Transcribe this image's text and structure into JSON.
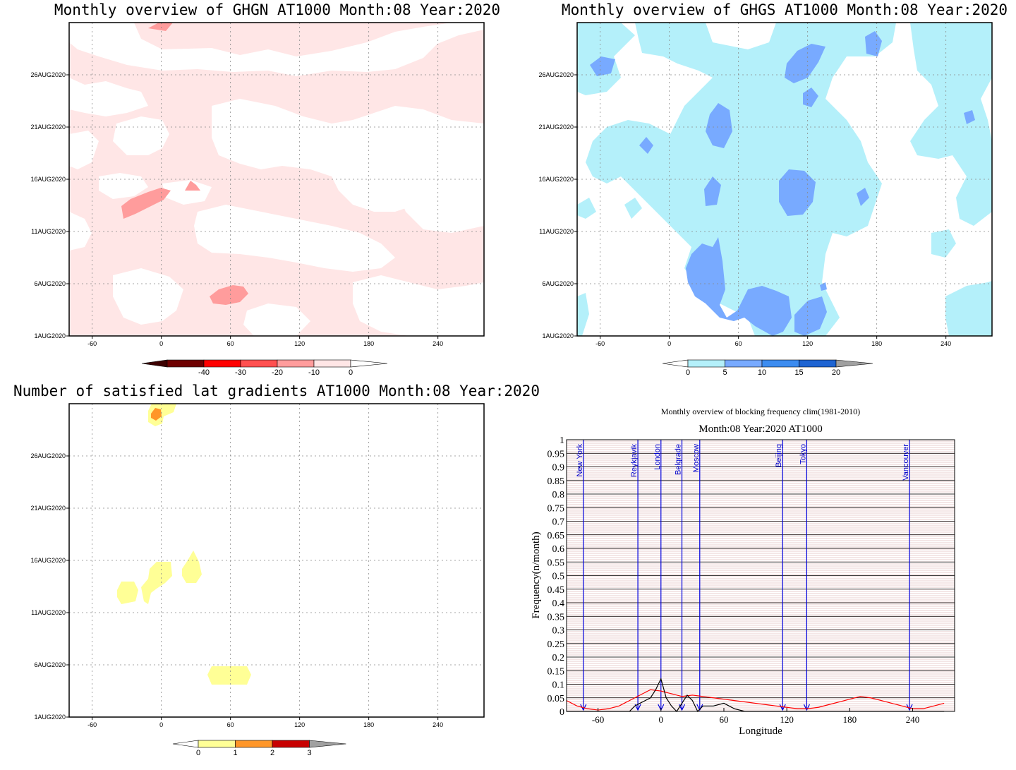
{
  "colors": {
    "pink_light": "#ffe6e6",
    "pink_mid": "#ff9c9c",
    "pink_med": "#ff5050",
    "red": "#ff0000",
    "dark_red": "#6e0000",
    "cyan_light": "#b4f0fa",
    "blue_light": "#78aaff",
    "blue_mid": "#3c8cf0",
    "blue_dark": "#1e64d2",
    "grey": "#a0a0a0",
    "yellow": "#ffff96",
    "orange": "#ff9628",
    "crimson": "#c80000",
    "city_line": "#0000dd",
    "clim_line": "#ff0000",
    "obs_line": "#000000",
    "bg_hatch": "#d2a0a0"
  },
  "chart_data": [
    {
      "type": "heatmap",
      "title": "Monthly overview of GHGN AT1000 Month:08 Year:2020",
      "x_ticks": [
        "-60",
        "0",
        "60",
        "120",
        "180",
        "240"
      ],
      "y_ticks": [
        "1AUG2020",
        "6AUG2020",
        "11AUG2020",
        "16AUG2020",
        "21AUG2020",
        "26AUG2020"
      ],
      "xlim": [
        -80,
        280
      ],
      "colorbar": {
        "labels": [
          "-40",
          "-30",
          "-20",
          "-10",
          "0"
        ]
      },
      "features": [
        {
          "level": "-10 to -20",
          "center": [
            22,
            14.5
          ]
        },
        {
          "level": "-10 to -20",
          "center": [
            66,
            5.3
          ]
        },
        {
          "level": "-10 to -20",
          "center": [
            27,
            15.8
          ]
        }
      ]
    },
    {
      "type": "heatmap",
      "title": "Monthly overview of GHGS AT1000 Month:08 Year:2020",
      "x_ticks": [
        "-60",
        "0",
        "60",
        "120",
        "180",
        "240"
      ],
      "y_ticks": [
        "1AUG2020",
        "6AUG2020",
        "11AUG2020",
        "16AUG2020",
        "21AUG2020",
        "26AUG2020"
      ],
      "xlim": [
        -80,
        280
      ],
      "colorbar": {
        "labels": [
          "0",
          "5",
          "10",
          "15",
          "20"
        ]
      }
    },
    {
      "type": "heatmap",
      "title": "Number of satisfied lat gradients AT1000 Month:08 Year:2020",
      "x_ticks": [
        "-60",
        "0",
        "60",
        "120",
        "180",
        "240"
      ],
      "y_ticks": [
        "1AUG2020",
        "6AUG2020",
        "11AUG2020",
        "16AUG2020",
        "21AUG2020",
        "26AUG2020"
      ],
      "xlim": [
        -80,
        280
      ],
      "colorbar": {
        "labels": [
          "0",
          "1",
          "2",
          "3"
        ]
      },
      "features": [
        {
          "value": 1,
          "center": [
            -5,
            29.5
          ]
        },
        {
          "value": 2,
          "center": [
            -5,
            29.2
          ]
        },
        {
          "value": 1,
          "center": [
            -30,
            13.2
          ]
        },
        {
          "value": 1,
          "center": [
            -3,
            14.2
          ]
        },
        {
          "value": 1,
          "center": [
            26,
            15.2
          ]
        },
        {
          "value": 1,
          "center": [
            60,
            5.0
          ]
        }
      ]
    },
    {
      "type": "line",
      "title": "Monthly overview of blocking frequency clim(1981-2010)",
      "subtitle": "Month:08 Year:2020  AT1000",
      "xlabel": "Longitude",
      "ylabel": "Frequency(n/month)",
      "xlim": [
        -90,
        280
      ],
      "ylim": [
        0,
        1
      ],
      "x_ticks": [
        "-60",
        "0",
        "60",
        "120",
        "180",
        "240"
      ],
      "y_ticks": [
        "0",
        "0.05",
        "0.1",
        "0.15",
        "0.2",
        "0.25",
        "0.3",
        "0.35",
        "0.4",
        "0.45",
        "0.5",
        "0.55",
        "0.6",
        "0.65",
        "0.7",
        "0.75",
        "0.8",
        "0.85",
        "0.9",
        "0.95",
        "1"
      ],
      "cities": [
        {
          "name": "New York",
          "lon": -74
        },
        {
          "name": "Reykjavik",
          "lon": -22
        },
        {
          "name": "London",
          "lon": 0
        },
        {
          "name": "Belgrade",
          "lon": 20
        },
        {
          "name": "Moscow",
          "lon": 37
        },
        {
          "name": "Beijing",
          "lon": 116
        },
        {
          "name": "Tokyo",
          "lon": 139
        },
        {
          "name": "Vancouver",
          "lon": 237
        }
      ],
      "series": [
        {
          "x": [
            -90,
            -80,
            -70,
            -60,
            -50,
            -40,
            -30,
            -20,
            -10,
            0,
            10,
            20,
            30,
            40,
            50,
            60,
            70,
            80,
            90,
            100,
            110,
            120,
            130,
            140,
            150,
            160,
            170,
            180,
            190,
            200,
            210,
            220,
            230,
            240,
            250,
            260,
            270
          ],
          "y": [
            0.04,
            0.02,
            0.01,
            0.005,
            0.01,
            0.02,
            0.04,
            0.06,
            0.08,
            0.075,
            0.065,
            0.055,
            0.06,
            0.055,
            0.05,
            0.045,
            0.04,
            0.035,
            0.03,
            0.025,
            0.02,
            0.015,
            0.01,
            0.01,
            0.015,
            0.025,
            0.035,
            0.045,
            0.055,
            0.05,
            0.04,
            0.03,
            0.02,
            0.01,
            0.01,
            0.02,
            0.03
          ]
        },
        {
          "x": [
            -90,
            -80,
            -70,
            -60,
            -50,
            -40,
            -30,
            -25,
            -20,
            -15,
            -10,
            -5,
            0,
            5,
            10,
            15,
            20,
            25,
            30,
            35,
            40,
            50,
            60,
            70,
            80,
            90,
            100,
            120,
            140,
            160,
            180,
            200,
            220,
            240,
            260,
            270
          ],
          "y": [
            0,
            0,
            0,
            0,
            0,
            0,
            0,
            0.02,
            0.03,
            0.04,
            0.05,
            0.08,
            0.12,
            0.05,
            0.02,
            0,
            0.03,
            0.06,
            0.04,
            0,
            0.02,
            0.02,
            0.03,
            0.01,
            0,
            0,
            0,
            0,
            0,
            0,
            0,
            0,
            0,
            0,
            0,
            0
          ]
        }
      ]
    }
  ]
}
